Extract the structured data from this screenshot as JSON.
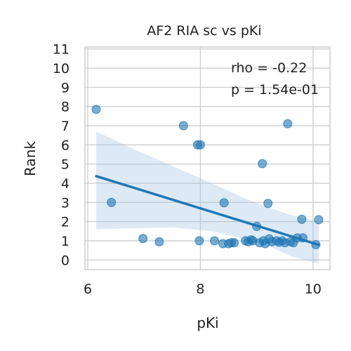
{
  "chart_data": {
    "type": "scatter",
    "title": "AF2 RIA sc vs pKi",
    "xlabel": "pKi",
    "ylabel": "Rank",
    "xlim": [
      5.95,
      10.3
    ],
    "ylim": [
      -0.5,
      11.1
    ],
    "xticks": [
      6,
      8,
      10
    ],
    "yticks": [
      0,
      1,
      2,
      3,
      4,
      5,
      6,
      7,
      8,
      9,
      10,
      11
    ],
    "grid": true,
    "annotations": [
      "rho = -0.22",
      "p = 1.54e-01"
    ],
    "colors": {
      "points": "#1f77b4",
      "line": "#1f77b4",
      "band": "#9fc1e2"
    },
    "points": [
      [
        6.15,
        7.85
      ],
      [
        6.42,
        3.0
      ],
      [
        6.98,
        1.12
      ],
      [
        7.27,
        0.95
      ],
      [
        7.7,
        7.0
      ],
      [
        7.95,
        6.0
      ],
      [
        7.98,
        1.0
      ],
      [
        8.0,
        6.0
      ],
      [
        8.25,
        1.0
      ],
      [
        8.4,
        0.85
      ],
      [
        8.42,
        2.98
      ],
      [
        8.5,
        0.85
      ],
      [
        8.55,
        0.9
      ],
      [
        8.6,
        0.9
      ],
      [
        8.8,
        1.0
      ],
      [
        8.85,
        0.95
      ],
      [
        8.9,
        1.05
      ],
      [
        8.93,
        1.0
      ],
      [
        9.0,
        1.75
      ],
      [
        9.05,
        0.9
      ],
      [
        9.1,
        5.02
      ],
      [
        9.12,
        1.0
      ],
      [
        9.15,
        0.85
      ],
      [
        9.2,
        2.95
      ],
      [
        9.22,
        1.1
      ],
      [
        9.27,
        0.95
      ],
      [
        9.35,
        1.0
      ],
      [
        9.4,
        0.92
      ],
      [
        9.45,
        1.0
      ],
      [
        9.5,
        0.9
      ],
      [
        9.55,
        7.1
      ],
      [
        9.6,
        0.95
      ],
      [
        9.65,
        0.9
      ],
      [
        9.72,
        1.15
      ],
      [
        9.8,
        2.12
      ],
      [
        9.82,
        1.15
      ],
      [
        10.05,
        0.8
      ],
      [
        10.1,
        2.1
      ]
    ],
    "fit": {
      "x": [
        6.15,
        10.1
      ],
      "y": [
        4.37,
        0.79
      ]
    },
    "ci_band": {
      "x": [
        6.15,
        6.8,
        7.5,
        8.2,
        8.8,
        9.2,
        9.6,
        10.1
      ],
      "upper": [
        6.7,
        5.8,
        4.9,
        4.0,
        3.2,
        2.75,
        2.35,
        2.0
      ],
      "lower": [
        1.6,
        1.65,
        1.7,
        1.5,
        1.1,
        0.75,
        0.2,
        -0.2
      ]
    }
  }
}
